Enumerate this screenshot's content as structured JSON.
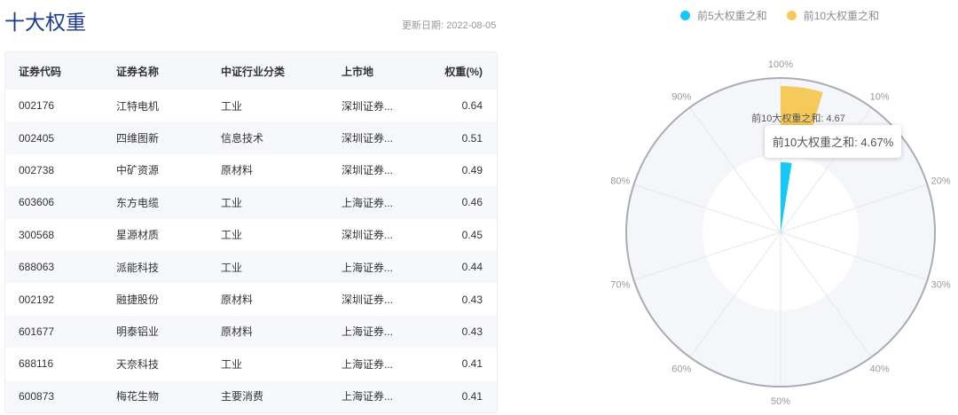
{
  "title": "十大权重",
  "update_date": "更新日期: 2022-08-05",
  "table": {
    "headers": [
      "证券代码",
      "证券名称",
      "中证行业分类",
      "上市地",
      "权重(%)"
    ],
    "rows": [
      [
        "002176",
        "江特电机",
        "工业",
        "深圳证券...",
        "0.64"
      ],
      [
        "002405",
        "四维图新",
        "信息技术",
        "深圳证券...",
        "0.51"
      ],
      [
        "002738",
        "中矿资源",
        "原材料",
        "深圳证券...",
        "0.49"
      ],
      [
        "603606",
        "东方电缆",
        "工业",
        "上海证券...",
        "0.46"
      ],
      [
        "300568",
        "星源材质",
        "工业",
        "深圳证券...",
        "0.45"
      ],
      [
        "688063",
        "派能科技",
        "工业",
        "上海证券...",
        "0.44"
      ],
      [
        "002192",
        "融捷股份",
        "原材料",
        "深圳证券...",
        "0.43"
      ],
      [
        "601677",
        "明泰铝业",
        "原材料",
        "上海证券...",
        "0.43"
      ],
      [
        "688116",
        "天奈科技",
        "工业",
        "上海证券...",
        "0.41"
      ],
      [
        "600873",
        "梅花生物",
        "主要消费",
        "上海证券...",
        "0.41"
      ]
    ]
  },
  "chart_data": {
    "type": "polar-bar",
    "angle_axis": {
      "min": 0,
      "max": 100,
      "unit": "%",
      "tick_labels": [
        "10%",
        "20%",
        "30%",
        "40%",
        "50%",
        "60%",
        "70%",
        "80%",
        "90%",
        "100%"
      ]
    },
    "series": [
      {
        "name": "前5大权重之和",
        "value": 2.55,
        "color": "#16c8f5"
      },
      {
        "name": "前10大权重之和",
        "value": 4.67,
        "color": "#f5c95a"
      }
    ],
    "legend": "top",
    "data_label": "前10大权重之和: 4.67",
    "tooltip": "前10大权重之和: 4.67%"
  }
}
